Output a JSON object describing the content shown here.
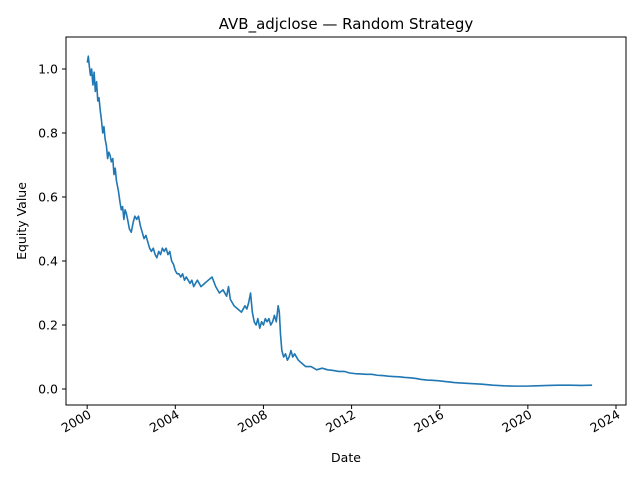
{
  "chart_data": {
    "type": "line",
    "title": "AVB_adjclose — Random Strategy",
    "xlabel": "Date",
    "ylabel": "Equity Value",
    "x_ticks": [
      "2000",
      "2004",
      "2008",
      "2012",
      "2016",
      "2020",
      "2024"
    ],
    "y_ticks": [
      "0.0",
      "0.2",
      "0.4",
      "0.6",
      "0.8",
      "1.0"
    ],
    "xlim": [
      "1999-01-15",
      "2024-06-15"
    ],
    "ylim": [
      -0.05,
      1.1
    ],
    "grid": false,
    "legend": "none",
    "series": [
      {
        "color": "#1f77b4",
        "x": [
          "2000-01-03",
          "2000-01-20",
          "2000-02-05",
          "2000-02-25",
          "2000-03-15",
          "2000-04-05",
          "2000-04-25",
          "2000-05-15",
          "2000-06-05",
          "2000-06-25",
          "2000-07-15",
          "2000-08-05",
          "2000-08-25",
          "2000-09-15",
          "2000-10-05",
          "2000-10-25",
          "2000-11-15",
          "2000-12-05",
          "2000-12-25",
          "2001-01-15",
          "2001-02-05",
          "2001-03-01",
          "2001-03-20",
          "2001-04-10",
          "2001-05-01",
          "2001-06-01",
          "2001-07-01",
          "2001-07-20",
          "2001-08-10",
          "2001-09-01",
          "2001-09-20",
          "2001-10-10",
          "2001-11-01",
          "2001-12-01",
          "2002-01-01",
          "2002-02-01",
          "2002-03-01",
          "2002-04-01",
          "2002-05-01",
          "2002-06-01",
          "2002-07-01",
          "2002-08-01",
          "2002-09-01",
          "2002-10-01",
          "2002-11-01",
          "2002-12-01",
          "2003-01-01",
          "2003-02-01",
          "2003-03-01",
          "2003-04-01",
          "2003-05-01",
          "2003-06-01",
          "2003-07-01",
          "2003-08-01",
          "2003-09-01",
          "2003-10-01",
          "2003-11-01",
          "2003-12-01",
          "2004-01-01",
          "2004-02-01",
          "2004-03-01",
          "2004-04-01",
          "2004-05-01",
          "2004-06-01",
          "2004-07-01",
          "2004-08-01",
          "2004-09-01",
          "2004-10-01",
          "2004-11-01",
          "2004-12-01",
          "2005-01-01",
          "2005-03-01",
          "2005-05-01",
          "2005-07-01",
          "2005-09-01",
          "2005-11-01",
          "2006-01-01",
          "2006-03-01",
          "2006-05-01",
          "2006-06-01",
          "2006-07-01",
          "2006-09-01",
          "2006-11-01",
          "2007-01-01",
          "2007-03-01",
          "2007-04-01",
          "2007-05-01",
          "2007-06-01",
          "2007-07-01",
          "2007-08-01",
          "2007-09-01",
          "2007-10-01",
          "2007-11-01",
          "2007-12-01",
          "2008-01-01",
          "2008-02-01",
          "2008-03-01",
          "2008-04-01",
          "2008-05-01",
          "2008-06-01",
          "2008-07-01",
          "2008-08-01",
          "2008-09-01",
          "2008-09-20",
          "2008-10-10",
          "2008-11-01",
          "2008-12-01",
          "2009-01-01",
          "2009-02-01",
          "2009-03-01",
          "2009-04-01",
          "2009-05-01",
          "2009-06-01",
          "2009-08-01",
          "2009-10-01",
          "2009-12-01",
          "2010-03-01",
          "2010-06-01",
          "2010-09-01",
          "2010-12-01",
          "2011-03-01",
          "2011-06-01",
          "2011-09-01",
          "2011-12-01",
          "2012-03-01",
          "2012-06-01",
          "2012-09-01",
          "2012-12-01",
          "2013-03-01",
          "2013-06-01",
          "2013-09-01",
          "2013-12-01",
          "2014-03-01",
          "2014-06-01",
          "2014-09-01",
          "2014-12-01",
          "2015-03-01",
          "2015-06-01",
          "2015-09-01",
          "2015-12-01",
          "2016-03-01",
          "2016-06-01",
          "2016-09-01",
          "2016-12-01",
          "2017-06-01",
          "2017-12-01",
          "2018-06-01",
          "2018-12-01",
          "2019-06-01",
          "2019-12-01",
          "2020-06-01",
          "2020-12-01",
          "2021-06-01",
          "2021-12-01",
          "2022-06-01",
          "2022-12-01"
        ],
        "y": [
          1.02,
          1.04,
          1.01,
          0.98,
          1.0,
          0.95,
          0.99,
          0.93,
          0.96,
          0.9,
          0.91,
          0.87,
          0.84,
          0.8,
          0.82,
          0.78,
          0.76,
          0.72,
          0.74,
          0.73,
          0.71,
          0.72,
          0.67,
          0.69,
          0.65,
          0.62,
          0.58,
          0.56,
          0.57,
          0.53,
          0.56,
          0.55,
          0.53,
          0.5,
          0.49,
          0.52,
          0.54,
          0.53,
          0.54,
          0.51,
          0.49,
          0.47,
          0.48,
          0.46,
          0.44,
          0.43,
          0.44,
          0.42,
          0.41,
          0.43,
          0.42,
          0.44,
          0.43,
          0.44,
          0.42,
          0.43,
          0.4,
          0.39,
          0.37,
          0.36,
          0.36,
          0.35,
          0.36,
          0.34,
          0.35,
          0.34,
          0.33,
          0.34,
          0.32,
          0.33,
          0.34,
          0.32,
          0.33,
          0.34,
          0.35,
          0.32,
          0.3,
          0.31,
          0.29,
          0.32,
          0.28,
          0.26,
          0.25,
          0.24,
          0.26,
          0.25,
          0.27,
          0.3,
          0.24,
          0.21,
          0.2,
          0.22,
          0.19,
          0.21,
          0.2,
          0.22,
          0.21,
          0.22,
          0.2,
          0.21,
          0.23,
          0.21,
          0.26,
          0.24,
          0.17,
          0.12,
          0.1,
          0.11,
          0.09,
          0.1,
          0.12,
          0.1,
          0.11,
          0.09,
          0.08,
          0.07,
          0.07,
          0.06,
          0.065,
          0.06,
          0.058,
          0.055,
          0.055,
          0.05,
          0.048,
          0.047,
          0.046,
          0.046,
          0.043,
          0.042,
          0.04,
          0.039,
          0.038,
          0.036,
          0.035,
          0.033,
          0.03,
          0.028,
          0.027,
          0.026,
          0.024,
          0.022,
          0.02,
          0.019,
          0.017,
          0.015,
          0.012,
          0.01,
          0.009,
          0.009,
          0.01,
          0.011,
          0.012,
          0.012,
          0.011,
          0.012
        ]
      }
    ]
  }
}
